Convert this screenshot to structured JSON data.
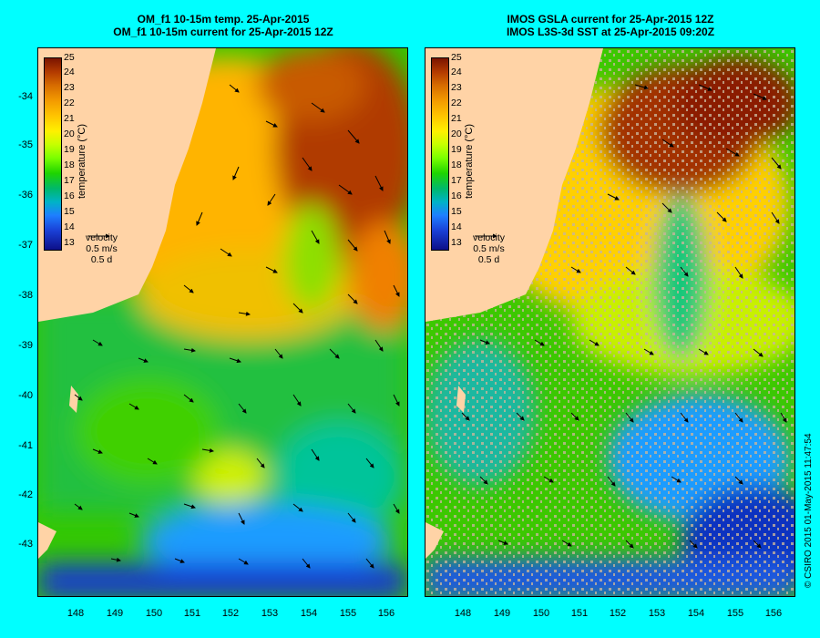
{
  "left": {
    "title_line1": "OM_f1 10-15m temp. 25-Apr-2015",
    "title_line2": "OM_f1 10-15m current for 25-Apr-2015 12Z"
  },
  "right": {
    "title_line1": "IMOS GSLA current for 25-Apr-2015 12Z",
    "title_line2": "IMOS L3S-3d SST at 25-Apr-2015 09:20Z"
  },
  "colorbar": {
    "ticks": [
      "25",
      "24",
      "23",
      "22",
      "21",
      "20",
      "19",
      "18",
      "17",
      "16",
      "15",
      "14",
      "13"
    ],
    "unit_label": "temperature (°C)"
  },
  "velocity_legend": {
    "title": "velocity",
    "speed": "0.5 m/s",
    "duration": "0.5 d"
  },
  "axes": {
    "lat_ticks": [
      "-34",
      "-35",
      "-36",
      "-37",
      "-38",
      "-39",
      "-40",
      "-41",
      "-42",
      "-43"
    ],
    "lon_ticks": [
      "148",
      "149",
      "150",
      "151",
      "152",
      "153",
      "154",
      "155",
      "156"
    ]
  },
  "credit": "© CSIRO 2015   01-May-2015 11:47:54",
  "colors": {
    "background": "#00ffff",
    "land": "#ffd3a6",
    "missing_data": "#c8b49a"
  }
}
